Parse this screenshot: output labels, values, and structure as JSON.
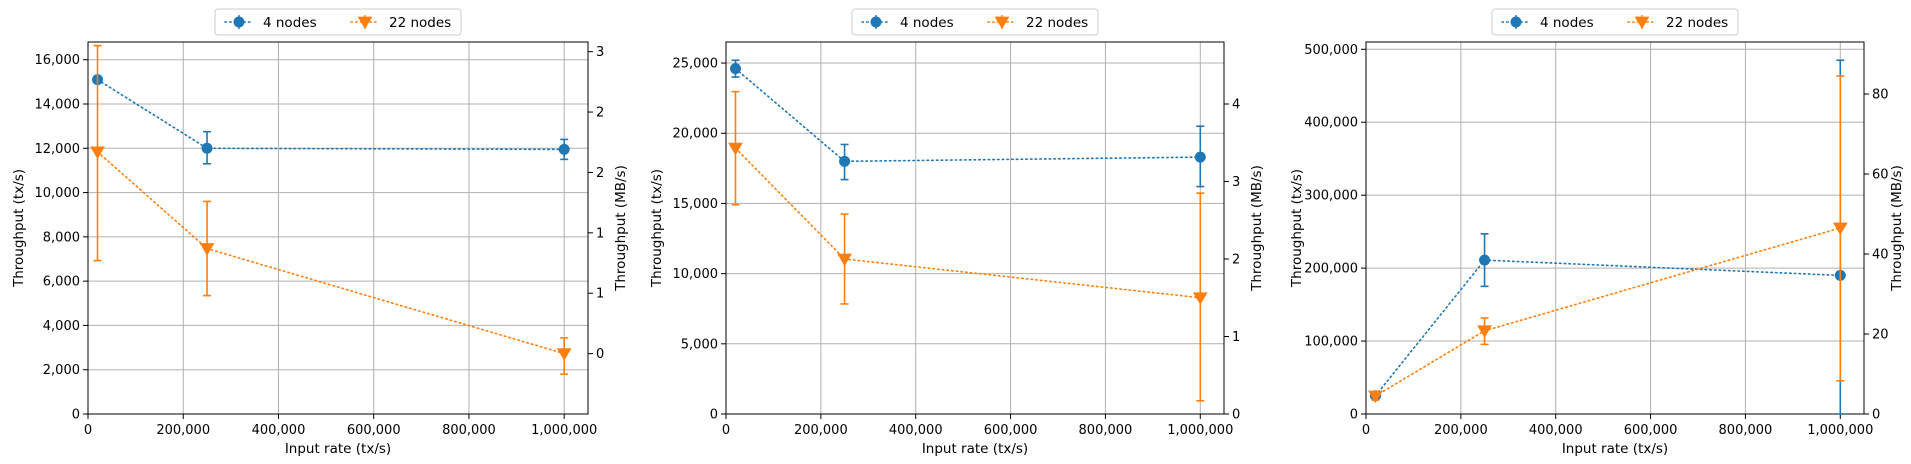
{
  "chart_data": [
    {
      "type": "line",
      "xlabel": "Input rate (tx/s)",
      "ylabel": "Throughput (tx/s)",
      "ylabel_right": "Throughput (MB/s)",
      "xlim": [
        0,
        1050000
      ],
      "ylim": [
        0,
        16800
      ],
      "ylim_right": [
        -0.5,
        2.58
      ],
      "xticks": [
        0,
        200000,
        400000,
        600000,
        800000,
        1000000
      ],
      "xtick_labels": [
        "0",
        "200,000",
        "400,000",
        "600,000",
        "800,000",
        "1,000,000"
      ],
      "yticks": [
        0,
        2000,
        4000,
        6000,
        8000,
        10000,
        12000,
        14000,
        16000
      ],
      "ytick_labels": [
        "0",
        "2,000",
        "4,000",
        "6,000",
        "8,000",
        "10,000",
        "12,000",
        "14,000",
        "16,000"
      ],
      "yticks_right": [
        0,
        0.5,
        1,
        1.5,
        2,
        2.5
      ],
      "ytick_labels_right": [
        "0",
        "1",
        "1",
        "2",
        "2",
        "3"
      ],
      "grid": true,
      "legend": "top-center",
      "series": [
        {
          "name": "4 nodes",
          "axis": "left",
          "color": "#1f77b4",
          "marker": "circle",
          "x": [
            20000,
            250000,
            1000000
          ],
          "y": [
            15100,
            12000,
            11950
          ],
          "err_low": [
            15100,
            11300,
            11500
          ],
          "err_high": [
            15100,
            12750,
            12400
          ]
        },
        {
          "name": "22 nodes",
          "axis": "right",
          "color": "#ff7f0e",
          "marker": "triangle-down",
          "x": [
            20000,
            250000,
            1000000
          ],
          "y": [
            1.67,
            0.87,
            0.0
          ],
          "err_low": [
            0.77,
            0.48,
            -0.17
          ],
          "err_high": [
            2.55,
            1.26,
            0.13
          ]
        }
      ]
    },
    {
      "type": "line",
      "xlabel": "Input rate (tx/s)",
      "ylabel": "Throughput (tx/s)",
      "ylabel_right": "Throughput (MB/s)",
      "xlim": [
        0,
        1050000
      ],
      "ylim": [
        0,
        26500
      ],
      "ylim_right": [
        0,
        4.8
      ],
      "xticks": [
        0,
        200000,
        400000,
        600000,
        800000,
        1000000
      ],
      "xtick_labels": [
        "0",
        "200,000",
        "400,000",
        "600,000",
        "800,000",
        "1,000,000"
      ],
      "yticks": [
        0,
        5000,
        10000,
        15000,
        20000,
        25000
      ],
      "ytick_labels": [
        "0",
        "5,000",
        "10,000",
        "15,000",
        "20,000",
        "25,000"
      ],
      "yticks_right": [
        0,
        1,
        2,
        3,
        4
      ],
      "ytick_labels_right": [
        "0",
        "1",
        "2",
        "3",
        "4"
      ],
      "grid": true,
      "legend": "top-center",
      "series": [
        {
          "name": "4 nodes",
          "axis": "left",
          "color": "#1f77b4",
          "marker": "circle",
          "x": [
            20000,
            250000,
            1000000
          ],
          "y": [
            24600,
            18000,
            18300
          ],
          "err_low": [
            24000,
            16700,
            16200
          ],
          "err_high": [
            25200,
            19200,
            20500
          ]
        },
        {
          "name": "22 nodes",
          "axis": "right",
          "color": "#ff7f0e",
          "marker": "triangle-down",
          "x": [
            20000,
            250000,
            1000000
          ],
          "y": [
            3.43,
            2.0,
            1.5
          ],
          "err_low": [
            2.7,
            1.42,
            0.17
          ],
          "err_high": [
            4.16,
            2.58,
            2.85
          ]
        }
      ]
    },
    {
      "type": "line",
      "xlabel": "Input rate (tx/s)",
      "ylabel": "Throughput (tx/s)",
      "ylabel_right": "Throughput (MB/s)",
      "xlim": [
        0,
        1050000
      ],
      "ylim": [
        0,
        510000
      ],
      "ylim_right": [
        0,
        93
      ],
      "xticks": [
        0,
        200000,
        400000,
        600000,
        800000,
        1000000
      ],
      "xtick_labels": [
        "0",
        "200,000",
        "400,000",
        "600,000",
        "800,000",
        "1,000,000"
      ],
      "yticks": [
        0,
        100000,
        200000,
        300000,
        400000,
        500000
      ],
      "ytick_labels": [
        "0",
        "100,000",
        "200,000",
        "300,000",
        "400,000",
        "500,000"
      ],
      "yticks_right": [
        0,
        20,
        40,
        60,
        80
      ],
      "ytick_labels_right": [
        "0",
        "20",
        "40",
        "60",
        "80"
      ],
      "grid": true,
      "legend": "top-center",
      "series": [
        {
          "name": "4 nodes",
          "axis": "left",
          "color": "#1f77b4",
          "marker": "circle",
          "x": [
            20000,
            250000,
            1000000
          ],
          "y": [
            25000,
            211000,
            190000
          ],
          "err_low": [
            20000,
            175000,
            0
          ],
          "err_high": [
            30000,
            247000,
            485000
          ]
        },
        {
          "name": "22 nodes",
          "axis": "right",
          "color": "#ff7f0e",
          "marker": "triangle-down",
          "x": [
            20000,
            250000,
            1000000
          ],
          "y": [
            4.5,
            20.8,
            46.5
          ],
          "err_low": [
            3.5,
            17.4,
            8.3
          ],
          "err_high": [
            5.5,
            24.0,
            84.5
          ]
        }
      ]
    }
  ]
}
